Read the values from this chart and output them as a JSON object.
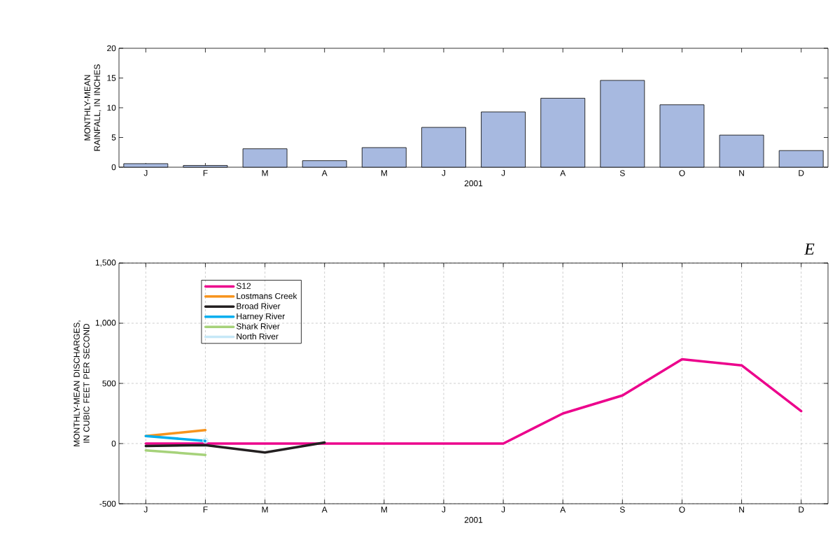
{
  "chart_data": [
    {
      "type": "bar",
      "xlabel": "2001",
      "ylabel": "MONTHLY-MEAN RAINFALL, IN INCHES",
      "categories": [
        "J",
        "F",
        "M",
        "A",
        "M",
        "J",
        "J",
        "A",
        "S",
        "O",
        "N",
        "D"
      ],
      "values": [
        0.6,
        0.3,
        3.1,
        1.1,
        3.3,
        6.7,
        9.3,
        11.6,
        14.6,
        10.5,
        5.4,
        2.8
      ],
      "color": "#a7b9e0",
      "ylim": [
        0,
        20
      ],
      "yticks": [
        0,
        5,
        10,
        15,
        20
      ]
    },
    {
      "type": "line",
      "xlabel": "2001",
      "ylabel": "MONTHLY-MEAN DISCHARGES, IN CUBIC FEET PER SECOND",
      "categories": [
        "J",
        "F",
        "M",
        "A",
        "M",
        "J",
        "J",
        "A",
        "S",
        "O",
        "N",
        "D"
      ],
      "series": [
        {
          "name": "S12",
          "color": "#ec008c",
          "values": [
            0,
            0,
            0,
            0,
            0,
            0,
            0,
            250,
            400,
            700,
            650,
            270
          ]
        },
        {
          "name": "Lostmans Creek",
          "color": "#f7941d",
          "values": [
            63,
            112,
            null,
            null,
            null,
            null,
            null,
            null,
            null,
            null,
            null,
            null
          ]
        },
        {
          "name": "Broad River",
          "color": "#231f20",
          "values": [
            -20,
            -13,
            -74,
            9,
            null,
            null,
            null,
            null,
            null,
            null,
            null,
            null
          ]
        },
        {
          "name": "Harney River",
          "color": "#00aeef",
          "values": [
            63,
            22,
            null,
            null,
            null,
            null,
            null,
            null,
            null,
            null,
            null,
            null
          ]
        },
        {
          "name": "Shark River",
          "color": "#a6d27a",
          "values": [
            -56,
            -94,
            null,
            null,
            null,
            null,
            null,
            null,
            null,
            null,
            null,
            null
          ]
        },
        {
          "name": "North River",
          "color": "#c6e8f7",
          "marker": "circle",
          "values": [
            null,
            25,
            null,
            null,
            null,
            null,
            null,
            null,
            null,
            null,
            null,
            null
          ]
        }
      ],
      "ylim": [
        -500,
        1500
      ],
      "yticks": [
        {
          "value": -500,
          "label": "-500"
        },
        {
          "value": 0,
          "label": "0"
        },
        {
          "value": 500,
          "label": "500"
        },
        {
          "value": 1000,
          "label": "1,000"
        },
        {
          "value": 1500,
          "label": "1,500"
        }
      ],
      "grid": true,
      "legend": "top left",
      "annotations": [
        "E"
      ]
    }
  ]
}
